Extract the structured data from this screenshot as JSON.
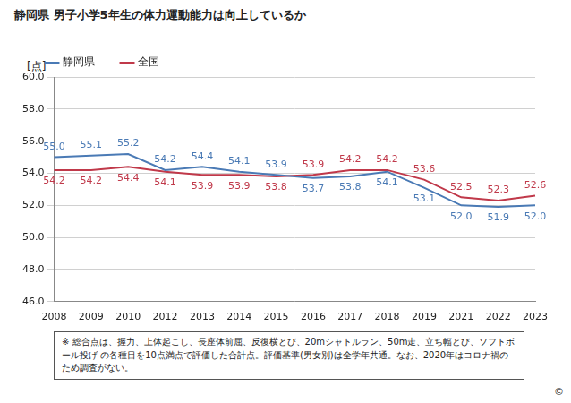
{
  "chart_data": {
    "type": "line",
    "title": "静岡県  男子小学5年生の体力運動能力は向上しているか",
    "y_label": "[点]",
    "categories": [
      "2008",
      "2009",
      "2010",
      "2012",
      "2013",
      "2014",
      "2015",
      "2016",
      "2017",
      "2018",
      "2019",
      "2021",
      "2022",
      "2023"
    ],
    "series": [
      {
        "name": "静岡県",
        "color": "#4a7ab5",
        "values": [
          55.0,
          55.1,
          55.2,
          54.2,
          54.4,
          54.1,
          53.9,
          53.7,
          53.8,
          54.1,
          53.1,
          52.0,
          51.9,
          52.0
        ],
        "value_labels": [
          "55.0",
          "55.1",
          "55.2",
          "54.2",
          "54.4",
          "54.1",
          "53.9",
          "53.7",
          "53.8",
          "54.1",
          "53.1",
          "52.0",
          "51.9",
          "52.0"
        ]
      },
      {
        "name": "全国",
        "color": "#c0394a",
        "values": [
          54.2,
          54.2,
          54.4,
          54.1,
          53.9,
          53.9,
          53.8,
          53.9,
          54.2,
          54.2,
          53.6,
          52.5,
          52.3,
          52.6
        ],
        "value_labels": [
          "54.2",
          "54.2",
          "54.4",
          "54.1",
          "53.9",
          "53.9",
          "53.8",
          "53.9",
          "54.2",
          "54.2",
          "53.6",
          "52.5",
          "52.3",
          "52.6"
        ]
      }
    ],
    "ylim": [
      46,
      60
    ],
    "yticks": [
      {
        "value": 46,
        "label": "46.0"
      },
      {
        "value": 48,
        "label": "48.0"
      },
      {
        "value": 50,
        "label": "50.0"
      },
      {
        "value": 52,
        "label": "52.0"
      },
      {
        "value": 54,
        "label": "54.0"
      },
      {
        "value": 56,
        "label": "56.0"
      },
      {
        "value": 58,
        "label": "58.0"
      },
      {
        "value": 60,
        "label": "60.0"
      }
    ],
    "grid": true,
    "legend": "top",
    "data_labels": true,
    "marker": "none",
    "note": "※ 総合点は、握力、上体起こし、長座体前屈、反復横とび、20mシャトルラン、50m走、立ち幅とび、ソフトボール投げ の各種目を10点満点で評価した合計点。評価基準(男女別)は全学年共通。なお、2020年はコロナ禍のため調査がない。",
    "copyright": "©"
  }
}
